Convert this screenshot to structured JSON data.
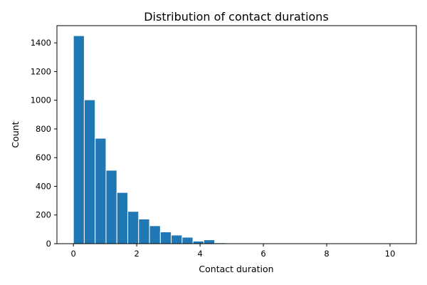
{
  "chart_data": {
    "type": "bar",
    "title": "Distribution of contact durations",
    "xlabel": "Contact duration",
    "ylabel": "Count",
    "xlim": [
      -0.52,
      10.83
    ],
    "ylim": [
      0,
      1520
    ],
    "x_ticks": [
      0,
      2,
      4,
      6,
      8,
      10
    ],
    "y_ticks": [
      0,
      200,
      400,
      600,
      800,
      1000,
      1200,
      1400
    ],
    "bin_width": 0.3433,
    "bins": [
      0.0,
      0.3433,
      0.6867,
      1.03,
      1.3733,
      1.7167,
      2.06,
      2.4033,
      2.7467,
      3.09,
      3.4333,
      3.7767,
      4.12,
      4.4633,
      4.8067,
      5.15,
      5.4933,
      5.8367,
      6.18,
      6.5233,
      6.8667,
      7.21,
      7.5533,
      7.8967,
      8.24,
      8.5833,
      8.9267,
      9.27,
      9.6133,
      9.9567
    ],
    "values": [
      1450,
      1003,
      735,
      512,
      357,
      225,
      172,
      125,
      82,
      60,
      45,
      18,
      27,
      6,
      5,
      4,
      1,
      1,
      1,
      0,
      0,
      0,
      0,
      0,
      0,
      0,
      0,
      0,
      0,
      1
    ],
    "bar_color": "#1f77b4",
    "bar_edge_color": "#ffffff",
    "grid": false,
    "legend": "none"
  }
}
